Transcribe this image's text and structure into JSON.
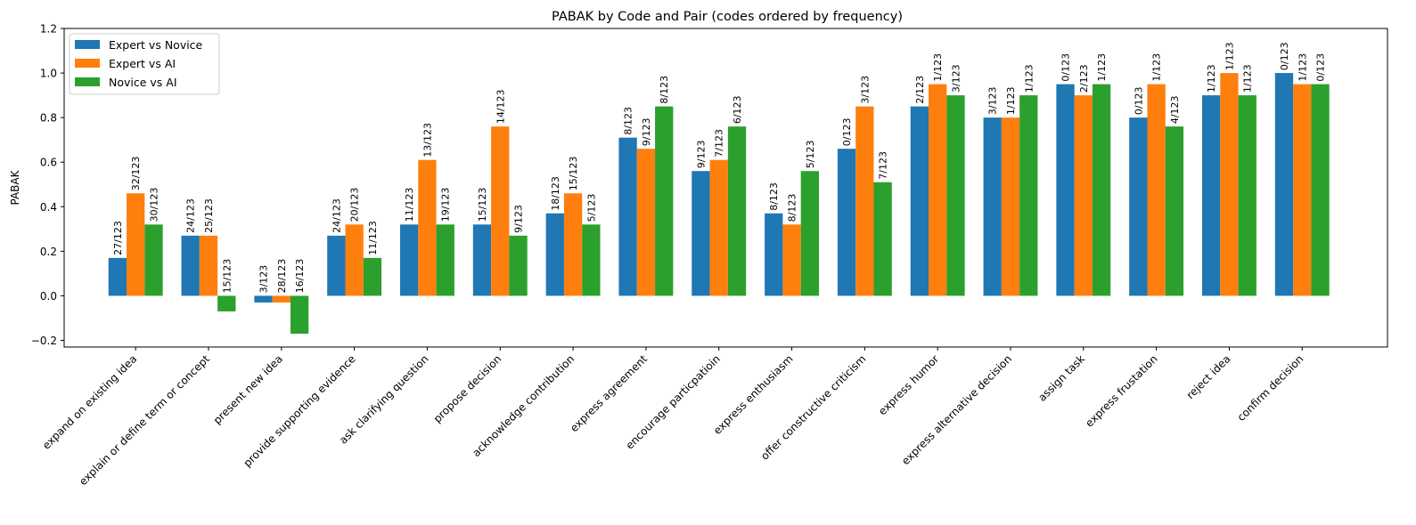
{
  "chart_data": {
    "type": "bar",
    "title": "PABAK by Code and Pair (codes ordered by frequency)",
    "xlabel": "",
    "ylabel": "PABAK",
    "ylim": [
      -0.23,
      1.2
    ],
    "yticks": [
      -0.2,
      0.0,
      0.2,
      0.4,
      0.6,
      0.8,
      1.0,
      1.2
    ],
    "ytick_labels": [
      "−0.2",
      "0.0",
      "0.2",
      "0.4",
      "0.6",
      "0.8",
      "1.0",
      "1.2"
    ],
    "grid": false,
    "legend_position": "top-left",
    "categories": [
      "expand on existing idea",
      "explain or define term or concept",
      "present new idea",
      "provide supporting evidence",
      "ask clarifying question",
      "propose decision",
      "acknowledge contribution",
      "express agreement",
      "encourage particpatioin",
      "express enthusiasm",
      "offer constructive criticism",
      "express humor",
      "express alternative decision",
      "assign task",
      "express frustation",
      "reject idea",
      "confirm decision"
    ],
    "series": [
      {
        "name": "Expert vs Novice",
        "color": "#1f77b4",
        "values": [
          0.17,
          0.27,
          -0.03,
          0.27,
          0.32,
          0.32,
          0.37,
          0.71,
          0.56,
          0.37,
          0.66,
          0.85,
          0.8,
          0.95,
          0.8,
          0.9,
          1.0
        ],
        "labels": [
          "27/123",
          "24/123",
          "3/123",
          "24/123",
          "11/123",
          "15/123",
          "18/123",
          "8/123",
          "9/123",
          "8/123",
          "0/123",
          "2/123",
          "3/123",
          "0/123",
          "0/123",
          "1/123",
          "0/123"
        ]
      },
      {
        "name": "Expert vs AI",
        "color": "#ff7f0e",
        "values": [
          0.46,
          0.27,
          -0.03,
          0.32,
          0.61,
          0.76,
          0.46,
          0.66,
          0.61,
          0.32,
          0.85,
          0.95,
          0.8,
          0.9,
          0.95,
          1.0,
          0.95
        ],
        "labels": [
          "32/123",
          "25/123",
          "28/123",
          "20/123",
          "13/123",
          "14/123",
          "15/123",
          "9/123",
          "7/123",
          "8/123",
          "3/123",
          "1/123",
          "1/123",
          "2/123",
          "1/123",
          "1/123",
          "1/123"
        ]
      },
      {
        "name": "Novice vs AI",
        "color": "#2ca02c",
        "values": [
          0.32,
          -0.07,
          -0.17,
          0.17,
          0.32,
          0.27,
          0.32,
          0.85,
          0.76,
          0.56,
          0.51,
          0.9,
          0.9,
          0.95,
          0.76,
          0.9,
          0.95
        ],
        "labels": [
          "30/123",
          "15/123",
          "16/123",
          "11/123",
          "19/123",
          "9/123",
          "5/123",
          "8/123",
          "6/123",
          "5/123",
          "7/123",
          "3/123",
          "1/123",
          "1/123",
          "4/123",
          "1/123",
          "0/123"
        ]
      }
    ]
  }
}
